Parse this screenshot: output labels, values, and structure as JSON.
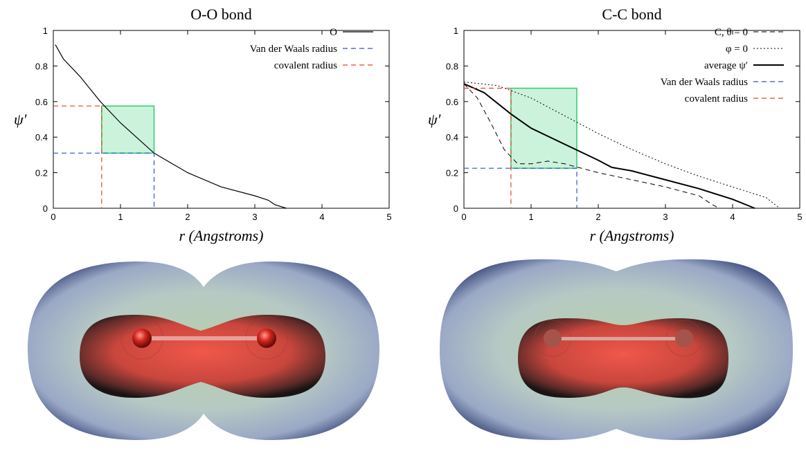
{
  "chart_data": [
    {
      "type": "line",
      "title": "O-O bond",
      "x_label": "r (Angstroms)",
      "y_label": "ψ′",
      "xlim": [
        0,
        5
      ],
      "ylim": [
        0,
        1
      ],
      "xticks": [
        0,
        1,
        2,
        3,
        4,
        5
      ],
      "yticks": [
        0,
        0.2,
        0.4,
        0.6,
        0.8,
        1
      ],
      "legend": "top-right",
      "highlight": {
        "x": [
          0.72,
          1.5
        ],
        "y": [
          0.31,
          0.575
        ],
        "color": "#2ecc71"
      },
      "series": [
        {
          "name": "O",
          "color": "#000000",
          "style": "solid",
          "line_width": 1.2,
          "x": [
            0.03,
            0.15,
            0.4,
            0.7,
            1.0,
            1.5,
            2.0,
            2.5,
            3.0,
            3.2,
            3.3,
            3.47
          ],
          "values": [
            0.92,
            0.84,
            0.74,
            0.6,
            0.48,
            0.31,
            0.2,
            0.12,
            0.07,
            0.045,
            0.02,
            0
          ]
        },
        {
          "name": "Van der Waals radius",
          "color": "#2a4fd8",
          "style": "dashed",
          "line_width": 1.2,
          "x": [
            0,
            1.5,
            1.5
          ],
          "values": [
            0.31,
            0.31,
            0
          ]
        },
        {
          "name": "covalent radius",
          "color": "#e0452a",
          "style": "dashed",
          "line_width": 1.2,
          "x": [
            0,
            0.72,
            0.72
          ],
          "values": [
            0.575,
            0.575,
            0
          ]
        }
      ]
    },
    {
      "type": "line",
      "title": "C-C bond",
      "x_label": "r (Angstroms)",
      "y_label": "ψ′",
      "xlim": [
        0,
        5
      ],
      "ylim": [
        0,
        1
      ],
      "xticks": [
        0,
        1,
        2,
        3,
        4,
        5
      ],
      "yticks": [
        0,
        0.2,
        0.4,
        0.6,
        0.8,
        1
      ],
      "legend": "top-right",
      "highlight": {
        "x": [
          0.7,
          1.68
        ],
        "y": [
          0.225,
          0.675
        ],
        "color": "#2ecc71"
      },
      "series": [
        {
          "name": "C, θ = 0",
          "color": "#000000",
          "style": "dashed",
          "line_width": 1,
          "x": [
            0,
            0.2,
            0.4,
            0.6,
            0.8,
            1.0,
            1.25,
            1.5,
            2.0,
            2.5,
            3.0,
            3.5,
            3.7,
            3.8
          ],
          "values": [
            0.7,
            0.62,
            0.48,
            0.33,
            0.25,
            0.25,
            0.265,
            0.25,
            0.2,
            0.16,
            0.12,
            0.07,
            0.02,
            0
          ]
        },
        {
          "name": "φ = 0",
          "color": "#000000",
          "style": "dotted",
          "line_width": 1,
          "x": [
            0,
            0.5,
            1.0,
            1.5,
            2.0,
            2.5,
            3.0,
            3.5,
            4.0,
            4.5,
            4.7
          ],
          "values": [
            0.71,
            0.69,
            0.62,
            0.52,
            0.42,
            0.33,
            0.25,
            0.18,
            0.12,
            0.06,
            0
          ]
        },
        {
          "name": "average ψ′",
          "color": "#000000",
          "style": "solid",
          "line_width": 2,
          "x": [
            0,
            0.3,
            0.7,
            1.0,
            1.5,
            2.0,
            2.2,
            2.5,
            3.0,
            3.5,
            4.0,
            4.33
          ],
          "values": [
            0.7,
            0.65,
            0.53,
            0.45,
            0.36,
            0.27,
            0.23,
            0.21,
            0.16,
            0.11,
            0.05,
            0
          ]
        },
        {
          "name": "Van der Waals radius",
          "color": "#2a4fd8",
          "style": "dashed",
          "line_width": 1.2,
          "x": [
            0,
            1.68,
            1.68
          ],
          "values": [
            0.225,
            0.225,
            0
          ]
        },
        {
          "name": "covalent radius",
          "color": "#e0452a",
          "style": "dashed",
          "line_width": 1.2,
          "x": [
            0,
            0.7,
            0.7
          ],
          "values": [
            0.675,
            0.675,
            0
          ]
        }
      ]
    }
  ]
}
